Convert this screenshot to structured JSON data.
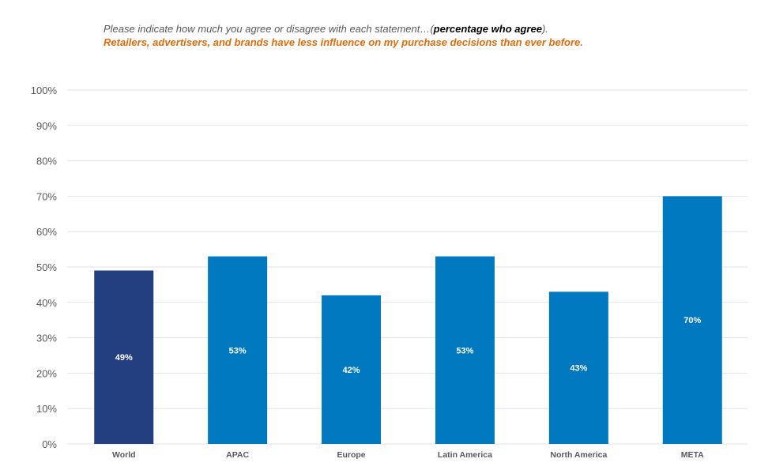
{
  "header": {
    "question_prefix": "Please indicate how much you agree or disagree with each statement…(",
    "question_bold": "percentage who agree",
    "question_suffix": ").",
    "statement": "Retailers, advertisers, and brands have less influence on my purchase decisions than ever before."
  },
  "colors": {
    "highlight": "#243F7F",
    "bar": "#0079C1",
    "statement": "#E36C0A",
    "grid": "#E3E3E3"
  },
  "chart_data": {
    "type": "bar",
    "title": "Please indicate how much you agree or disagree with each statement…(percentage who agree).",
    "subtitle": "Retailers, advertisers, and brands have less influence on my purchase decisions than ever before.",
    "categories": [
      "World",
      "APAC",
      "Europe",
      "Latin America",
      "North America",
      "META"
    ],
    "values": [
      49,
      53,
      42,
      53,
      43,
      70
    ],
    "data_labels": [
      "49%",
      "53%",
      "42%",
      "53%",
      "43%",
      "70%"
    ],
    "highlight_category": "World",
    "ylim": [
      0,
      100
    ],
    "yticks": [
      0,
      10,
      20,
      30,
      40,
      50,
      60,
      70,
      80,
      90,
      100
    ],
    "ytick_labels": [
      "0%",
      "10%",
      "20%",
      "30%",
      "40%",
      "50%",
      "60%",
      "70%",
      "80%",
      "90%",
      "100%"
    ],
    "xlabel": "",
    "ylabel": "",
    "grid": true,
    "legend": "none"
  }
}
